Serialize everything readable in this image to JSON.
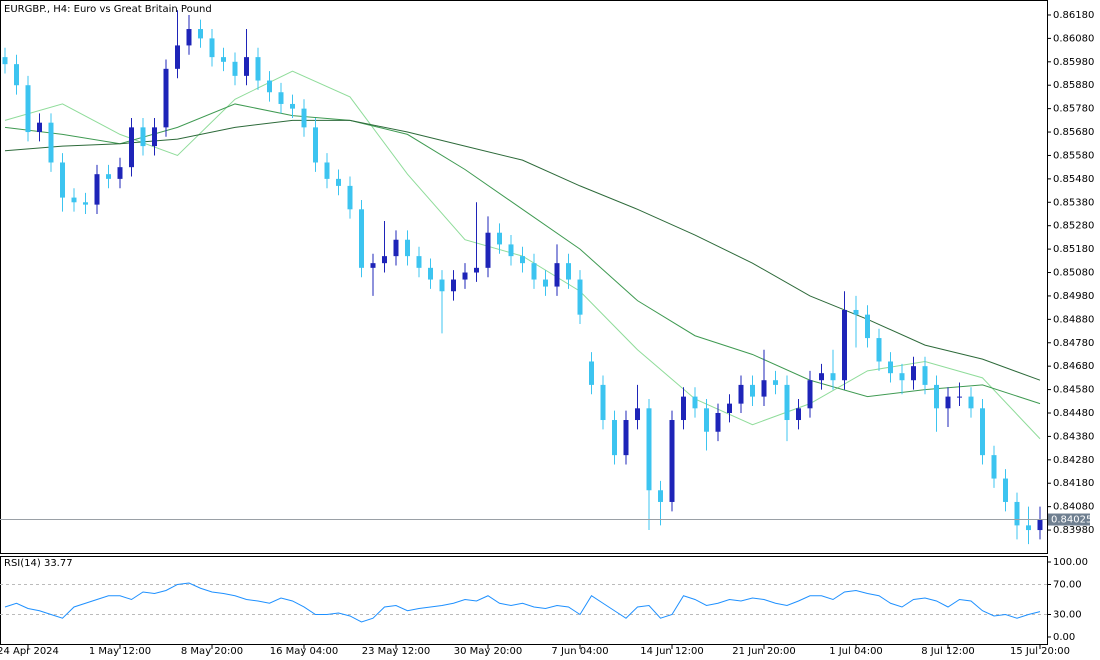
{
  "chart_data": [
    {
      "type": "candlestick",
      "title": "EURGBP., H4:  Euro vs Great Britain Pound",
      "categories": [
        null,
        null,
        "24 Apr 2024",
        null,
        null,
        null,
        null,
        null,
        null,
        null,
        "1 May 12:00",
        null,
        null,
        null,
        null,
        null,
        null,
        null,
        "8 May 20:00",
        null,
        null,
        null,
        null,
        null,
        null,
        null,
        "16 May 04:00",
        null,
        null,
        null,
        null,
        null,
        null,
        null,
        "23 May 12:00",
        null,
        null,
        null,
        null,
        null,
        null,
        null,
        "30 May 20:00",
        null,
        null,
        null,
        null,
        null,
        null,
        null,
        "7 Jun 04:00",
        null,
        null,
        null,
        null,
        null,
        null,
        null,
        "14 Jun 12:00",
        null,
        null,
        null,
        null,
        null,
        null,
        null,
        "21 Jun 20:00",
        null,
        null,
        null,
        null,
        null,
        null,
        null,
        "1 Jul 04:00",
        null,
        null,
        null,
        null,
        null,
        null,
        null,
        "8 Jul 12:00",
        null,
        null,
        null,
        null,
        null,
        null,
        null,
        "15 Jul 20:00"
      ],
      "open": [
        0.86,
        0.8597,
        0.8588,
        0.8568,
        0.8572,
        0.8555,
        0.854,
        0.8538,
        0.8537,
        0.855,
        0.8548,
        0.8553,
        0.857,
        0.8562,
        0.857,
        0.8595,
        0.8605,
        0.8612,
        0.8608,
        0.86,
        0.8598,
        0.8592,
        0.86,
        0.859,
        0.8585,
        0.858,
        0.8578,
        0.857,
        0.8555,
        0.8548,
        0.8545,
        0.8535,
        0.851,
        0.8512,
        0.8515,
        0.8522,
        0.8515,
        0.851,
        0.8505,
        0.85,
        0.8505,
        0.8508,
        0.851,
        0.8525,
        0.852,
        0.8515,
        0.8512,
        0.8505,
        0.8502,
        0.8512,
        0.8505,
        0.847,
        0.846,
        0.8445,
        0.843,
        0.8445,
        0.845,
        0.8415,
        0.841,
        0.8445,
        0.8455,
        0.845,
        0.844,
        0.8448,
        0.8452,
        0.846,
        0.8455,
        0.8462,
        0.846,
        0.8445,
        0.845,
        0.8462,
        0.8465,
        0.8462,
        0.8492,
        0.849,
        0.848,
        0.847,
        0.8465,
        0.8462,
        0.8468,
        0.846,
        0.845,
        0.8455,
        0.8455,
        0.845,
        0.843,
        0.842,
        0.841,
        0.84,
        0.8398
      ],
      "high": [
        0.8604,
        0.8601,
        0.8592,
        0.8576,
        0.8576,
        0.8559,
        0.8544,
        0.8542,
        0.8554,
        0.8554,
        0.8557,
        0.8574,
        0.8574,
        0.8574,
        0.8599,
        0.862,
        0.8618,
        0.8616,
        0.8612,
        0.8604,
        0.8602,
        0.8612,
        0.8604,
        0.8594,
        0.8589,
        0.8584,
        0.8582,
        0.8574,
        0.8559,
        0.8552,
        0.8549,
        0.8539,
        0.8516,
        0.853,
        0.8526,
        0.8526,
        0.8519,
        0.8514,
        0.8509,
        0.8509,
        0.8512,
        0.8538,
        0.8532,
        0.8529,
        0.8524,
        0.8519,
        0.8516,
        0.8509,
        0.852,
        0.8516,
        0.8509,
        0.8474,
        0.8464,
        0.8449,
        0.8449,
        0.846,
        0.8454,
        0.8419,
        0.8449,
        0.8459,
        0.8459,
        0.8454,
        0.8452,
        0.8456,
        0.8464,
        0.8464,
        0.8475,
        0.8466,
        0.8464,
        0.8454,
        0.8466,
        0.8469,
        0.8475,
        0.85,
        0.8498,
        0.8494,
        0.8484,
        0.8474,
        0.8469,
        0.8472,
        0.8472,
        0.8464,
        0.8459,
        0.8461,
        0.8459,
        0.8454,
        0.8434,
        0.8424,
        0.8414,
        0.8408,
        0.8408
      ],
      "low": [
        0.8593,
        0.8584,
        0.8564,
        0.8564,
        0.8551,
        0.8534,
        0.8534,
        0.8533,
        0.8533,
        0.8544,
        0.8544,
        0.8549,
        0.8558,
        0.8558,
        0.8566,
        0.8591,
        0.8601,
        0.8604,
        0.8596,
        0.8594,
        0.8588,
        0.8588,
        0.8586,
        0.8581,
        0.8576,
        0.8574,
        0.8566,
        0.8551,
        0.8544,
        0.8541,
        0.8531,
        0.8506,
        0.8498,
        0.8508,
        0.8511,
        0.8511,
        0.8506,
        0.8501,
        0.8482,
        0.8496,
        0.8501,
        0.8504,
        0.8506,
        0.8516,
        0.8511,
        0.8508,
        0.8501,
        0.8498,
        0.8498,
        0.8501,
        0.8486,
        0.8456,
        0.8441,
        0.8426,
        0.8426,
        0.8441,
        0.8398,
        0.84,
        0.8406,
        0.8441,
        0.8446,
        0.8432,
        0.8436,
        0.8444,
        0.8448,
        0.8451,
        0.8451,
        0.8456,
        0.8436,
        0.8441,
        0.8446,
        0.8458,
        0.8458,
        0.8458,
        0.8476,
        0.8476,
        0.8466,
        0.8461,
        0.8456,
        0.8458,
        0.8456,
        0.844,
        0.8442,
        0.8451,
        0.8446,
        0.8426,
        0.8416,
        0.8406,
        0.8394,
        0.8392,
        0.8394
      ],
      "close": [
        0.8597,
        0.8588,
        0.8568,
        0.8572,
        0.8555,
        0.854,
        0.8538,
        0.8537,
        0.855,
        0.8548,
        0.8553,
        0.857,
        0.8562,
        0.857,
        0.8595,
        0.8605,
        0.8612,
        0.8608,
        0.86,
        0.8598,
        0.8592,
        0.86,
        0.859,
        0.8585,
        0.858,
        0.8578,
        0.857,
        0.8555,
        0.8548,
        0.8545,
        0.8535,
        0.851,
        0.8512,
        0.8515,
        0.8522,
        0.8515,
        0.851,
        0.8505,
        0.85,
        0.8505,
        0.8508,
        0.851,
        0.8525,
        0.852,
        0.8515,
        0.8512,
        0.8505,
        0.8502,
        0.8512,
        0.8505,
        0.849,
        0.846,
        0.8445,
        0.843,
        0.8445,
        0.845,
        0.8415,
        0.841,
        0.8445,
        0.8455,
        0.845,
        0.844,
        0.8448,
        0.8452,
        0.846,
        0.8455,
        0.8462,
        0.846,
        0.8445,
        0.845,
        0.8462,
        0.8465,
        0.8462,
        0.8492,
        0.849,
        0.848,
        0.847,
        0.8465,
        0.8462,
        0.8468,
        0.846,
        0.845,
        0.8455,
        0.8455,
        0.845,
        0.843,
        0.842,
        0.841,
        0.84,
        0.8398,
        0.84025
      ],
      "up_color": "#1e24b8",
      "down_color": "#3cc4f0",
      "series": [
        {
          "color": "#8fdc9a",
          "x": [
            0,
            5,
            10,
            15,
            20,
            25,
            30,
            35,
            40,
            45,
            50,
            55,
            60,
            65,
            70,
            75,
            80,
            85,
            90
          ],
          "values": [
            0.8573,
            0.858,
            0.8567,
            0.8558,
            0.8582,
            0.8594,
            0.8583,
            0.855,
            0.8522,
            0.8515,
            0.85,
            0.8475,
            0.8454,
            0.8443,
            0.8452,
            0.8466,
            0.847,
            0.8463,
            0.8437
          ]
        },
        {
          "color": "#3f9a52",
          "x": [
            0,
            5,
            10,
            15,
            20,
            25,
            30,
            35,
            40,
            45,
            50,
            55,
            60,
            65,
            70,
            75,
            80,
            85,
            90
          ],
          "values": [
            0.857,
            0.8567,
            0.8563,
            0.857,
            0.858,
            0.8575,
            0.8573,
            0.8567,
            0.8552,
            0.8535,
            0.8518,
            0.8496,
            0.8481,
            0.8473,
            0.8462,
            0.8455,
            0.8458,
            0.846,
            0.8452
          ]
        },
        {
          "color": "#2d6a3a",
          "x": [
            0,
            5,
            10,
            15,
            20,
            25,
            30,
            35,
            40,
            45,
            50,
            55,
            60,
            65,
            70,
            75,
            80,
            85,
            90
          ],
          "values": [
            0.856,
            0.8562,
            0.8563,
            0.8565,
            0.857,
            0.8573,
            0.8573,
            0.8568,
            0.8562,
            0.8556,
            0.8545,
            0.8535,
            0.8524,
            0.8512,
            0.8498,
            0.8488,
            0.8477,
            0.8471,
            0.8462
          ]
        }
      ],
      "current_price": {
        "value": 0.84025,
        "label": "0.84025"
      },
      "ylim": [
        0.83882,
        0.86244
      ],
      "yticks": [
        {
          "value": 0.8618,
          "label": "0.86180"
        },
        {
          "value": 0.8608,
          "label": "0.86080"
        },
        {
          "value": 0.8598,
          "label": "0.85980"
        },
        {
          "value": 0.8588,
          "label": "0.85880"
        },
        {
          "value": 0.8578,
          "label": "0.85780"
        },
        {
          "value": 0.8568,
          "label": "0.85680"
        },
        {
          "value": 0.8558,
          "label": "0.85580"
        },
        {
          "value": 0.8548,
          "label": "0.85480"
        },
        {
          "value": 0.8538,
          "label": "0.85380"
        },
        {
          "value": 0.8528,
          "label": "0.85280"
        },
        {
          "value": 0.8518,
          "label": "0.85180"
        },
        {
          "value": 0.8508,
          "label": "0.85080"
        },
        {
          "value": 0.8498,
          "label": "0.84980"
        },
        {
          "value": 0.8488,
          "label": "0.84880"
        },
        {
          "value": 0.8478,
          "label": "0.84780"
        },
        {
          "value": 0.8468,
          "label": "0.84680"
        },
        {
          "value": 0.8458,
          "label": "0.84580"
        },
        {
          "value": 0.8448,
          "label": "0.84480"
        },
        {
          "value": 0.8438,
          "label": "0.84380"
        },
        {
          "value": 0.8428,
          "label": "0.84280"
        },
        {
          "value": 0.8418,
          "label": "0.84180"
        },
        {
          "value": 0.8408,
          "label": "0.84080"
        },
        {
          "value": 0.8398,
          "label": "0.83980"
        }
      ]
    },
    {
      "type": "line",
      "title": "RSI(14) 33.77",
      "color": "#1e90ff",
      "values": [
        40,
        45,
        38,
        35,
        30,
        25,
        40,
        45,
        50,
        55,
        55,
        50,
        60,
        58,
        62,
        70,
        72,
        65,
        60,
        58,
        55,
        50,
        48,
        45,
        52,
        48,
        40,
        30,
        30,
        32,
        28,
        20,
        25,
        40,
        42,
        35,
        38,
        40,
        42,
        45,
        50,
        48,
        55,
        45,
        42,
        45,
        40,
        38,
        42,
        40,
        30,
        55,
        45,
        35,
        25,
        40,
        42,
        25,
        30,
        55,
        50,
        42,
        45,
        50,
        48,
        52,
        50,
        45,
        42,
        48,
        55,
        55,
        50,
        60,
        62,
        58,
        55,
        45,
        40,
        50,
        52,
        48,
        40,
        50,
        48,
        35,
        28,
        30,
        25,
        30,
        33.77
      ],
      "levels": [
        70,
        30
      ],
      "ylim": [
        -10.7,
        108
      ],
      "yticks": [
        {
          "value": 100,
          "label": "100.00"
        },
        {
          "value": 70,
          "label": "70.00"
        },
        {
          "value": 30,
          "label": "30.00"
        },
        {
          "value": 0,
          "label": "0.00"
        }
      ]
    }
  ]
}
